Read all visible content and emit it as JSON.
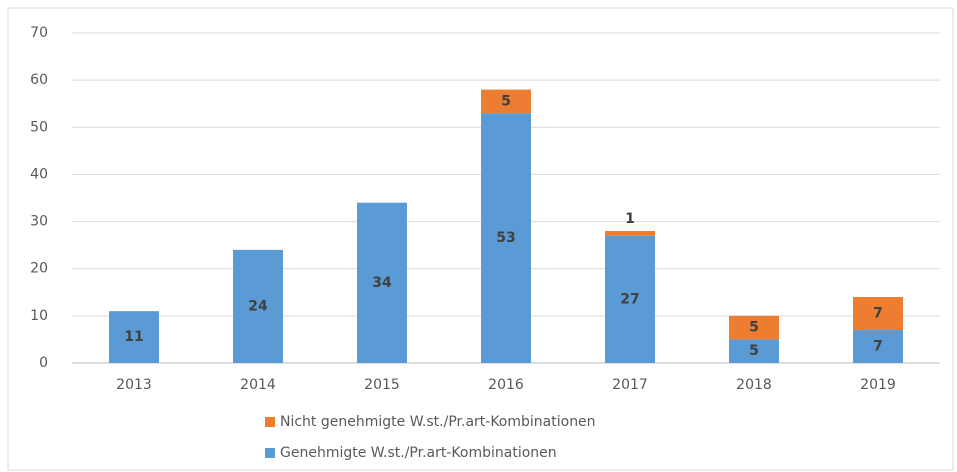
{
  "chart_data": {
    "type": "stacked_bar",
    "categories": [
      "2013",
      "2014",
      "2015",
      "2016",
      "2017",
      "2018",
      "2019"
    ],
    "series": [
      {
        "name": "Genehmigte W.st./Pr.art-Kombinationen",
        "color": "#5b9bd5",
        "values": [
          11,
          24,
          34,
          53,
          27,
          5,
          7
        ]
      },
      {
        "name": "Nicht genehmigte W.st./Pr.art-Kombinationen",
        "color": "#ed7d31",
        "values": [
          null,
          null,
          null,
          5,
          1,
          5,
          7
        ]
      }
    ],
    "ylim": [
      0,
      70
    ],
    "yticks": [
      0,
      10,
      20,
      30,
      40,
      50,
      60,
      70
    ],
    "grid": true,
    "legend": "bottom"
  }
}
